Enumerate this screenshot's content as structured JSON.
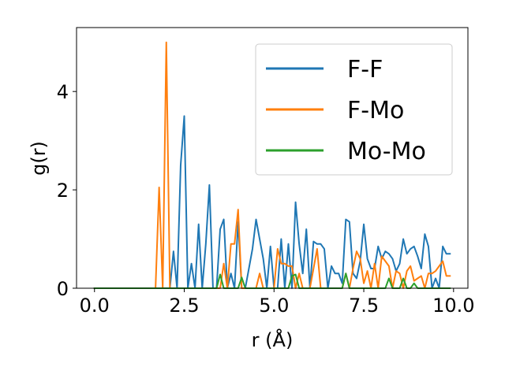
{
  "chart_data": {
    "type": "line",
    "xlabel": "r (Å)",
    "ylabel": "g(r)",
    "xlim": [
      -0.5,
      10.4
    ],
    "ylim": [
      0,
      5.3
    ],
    "x_ticks": [
      0.0,
      2.5,
      5.0,
      7.5,
      10.0
    ],
    "x_tick_labels": [
      "0.0",
      "2.5",
      "5.0",
      "7.5",
      "10.0"
    ],
    "y_ticks": [
      0,
      2,
      4
    ],
    "y_tick_labels": [
      "0",
      "2",
      "4"
    ],
    "grid": false,
    "legend_placement": "top-right",
    "series": [
      {
        "name": "F-F",
        "color": "#1f77b4",
        "x": [
          0.0,
          1.9,
          2.0,
          2.1,
          2.2,
          2.3,
          2.4,
          2.5,
          2.6,
          2.7,
          2.8,
          2.9,
          3.0,
          3.1,
          3.2,
          3.3,
          3.4,
          3.5,
          3.6,
          3.7,
          3.8,
          3.9,
          4.0,
          4.1,
          4.2,
          4.3,
          4.4,
          4.5,
          4.6,
          4.7,
          4.8,
          4.9,
          5.0,
          5.1,
          5.2,
          5.3,
          5.4,
          5.5,
          5.6,
          5.7,
          5.8,
          5.9,
          6.0,
          6.1,
          6.2,
          6.3,
          6.4,
          6.5,
          6.6,
          6.7,
          6.8,
          6.9,
          7.0,
          7.1,
          7.2,
          7.3,
          7.4,
          7.5,
          7.6,
          7.7,
          7.8,
          7.9,
          8.0,
          8.1,
          8.2,
          8.3,
          8.4,
          8.5,
          8.6,
          8.7,
          8.8,
          8.9,
          9.0,
          9.1,
          9.2,
          9.3,
          9.4,
          9.5,
          9.6,
          9.7,
          9.8,
          9.9
        ],
        "y": [
          0.0,
          0.0,
          0.0,
          0.0,
          0.75,
          0.0,
          2.5,
          3.5,
          0.0,
          0.5,
          0.0,
          1.3,
          0.0,
          0.9,
          2.1,
          0.0,
          0.0,
          1.2,
          1.4,
          0.0,
          0.3,
          0.0,
          1.35,
          0.0,
          0.0,
          0.4,
          0.8,
          1.4,
          1.0,
          0.6,
          0.0,
          0.85,
          0.0,
          0.0,
          1.0,
          0.0,
          0.9,
          0.0,
          1.75,
          0.9,
          0.3,
          1.2,
          0.0,
          0.95,
          0.9,
          0.9,
          0.8,
          0.0,
          0.45,
          0.3,
          0.3,
          0.1,
          1.4,
          1.35,
          0.3,
          0.2,
          0.55,
          1.3,
          0.6,
          0.4,
          0.4,
          0.85,
          0.6,
          0.75,
          0.7,
          0.6,
          0.35,
          0.5,
          1.0,
          0.7,
          0.8,
          0.85,
          0.65,
          0.4,
          1.1,
          0.85,
          0.0,
          0.2,
          0.0,
          0.85,
          0.7,
          0.7
        ]
      },
      {
        "name": "F-Mo",
        "color": "#ff7f0e",
        "x": [
          0.0,
          1.7,
          1.8,
          1.9,
          2.0,
          2.1,
          2.2,
          2.3,
          3.4,
          3.5,
          3.6,
          3.7,
          3.8,
          3.9,
          4.0,
          4.1,
          4.2,
          4.3,
          4.4,
          4.5,
          4.6,
          4.7,
          4.8,
          4.9,
          5.0,
          5.1,
          5.2,
          5.3,
          5.4,
          5.5,
          5.6,
          5.7,
          5.8,
          5.9,
          6.0,
          6.1,
          6.2,
          6.3,
          6.4,
          6.5,
          6.6,
          6.7,
          6.8,
          6.9,
          7.0,
          7.1,
          7.2,
          7.3,
          7.4,
          7.5,
          7.6,
          7.7,
          7.8,
          7.9,
          8.0,
          8.1,
          8.2,
          8.3,
          8.4,
          8.5,
          8.6,
          8.7,
          8.8,
          8.9,
          9.0,
          9.1,
          9.2,
          9.3,
          9.4,
          9.5,
          9.6,
          9.7,
          9.8,
          9.9
        ],
        "y": [
          0.0,
          0.0,
          2.05,
          0.0,
          5.0,
          0.0,
          0.0,
          0.0,
          0.0,
          0.0,
          0.5,
          0.0,
          0.9,
          0.9,
          1.6,
          0.0,
          0.0,
          0.0,
          0.0,
          0.0,
          0.3,
          0.0,
          0.0,
          0.0,
          0.0,
          0.8,
          0.5,
          0.5,
          0.45,
          0.45,
          0.0,
          0.3,
          0.0,
          0.0,
          0.0,
          0.4,
          0.8,
          0.0,
          0.0,
          0.0,
          0.0,
          0.0,
          0.0,
          0.0,
          0.3,
          0.0,
          0.4,
          0.75,
          0.6,
          0.1,
          0.35,
          0.0,
          0.5,
          0.0,
          0.65,
          0.55,
          0.45,
          0.0,
          0.35,
          0.3,
          0.0,
          0.35,
          0.45,
          0.15,
          0.2,
          0.25,
          0.0,
          0.3,
          0.3,
          0.35,
          0.45,
          0.55,
          0.25,
          0.25
        ]
      },
      {
        "name": "Mo-Mo",
        "color": "#2ca02c",
        "x": [
          0.0,
          3.4,
          3.5,
          3.6,
          3.7,
          4.0,
          4.1,
          4.2,
          5.4,
          5.5,
          5.6,
          5.7,
          6.9,
          7.0,
          7.1,
          8.1,
          8.2,
          8.3,
          8.5,
          8.6,
          8.7,
          8.8,
          8.9,
          9.0,
          9.9
        ],
        "y": [
          0.0,
          0.0,
          0.28,
          0.0,
          0.0,
          0.0,
          0.22,
          0.0,
          0.0,
          0.25,
          0.28,
          0.0,
          0.0,
          0.3,
          0.0,
          0.0,
          0.2,
          0.0,
          0.0,
          0.2,
          0.0,
          0.0,
          0.1,
          0.0,
          0.0
        ]
      }
    ]
  }
}
